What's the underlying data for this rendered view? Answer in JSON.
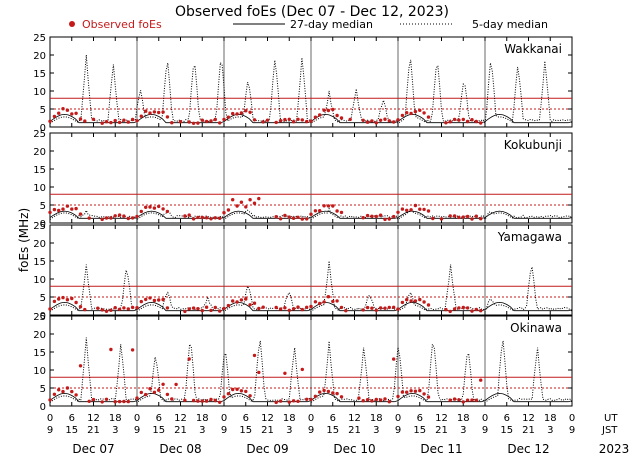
{
  "chart_data": {
    "type": "scatter",
    "title": "Observed foEs (Dec 07 - Dec 12, 2023)",
    "ylabel": "foEs (MHz)",
    "ylim": [
      0,
      25
    ],
    "yticks": [
      0,
      5,
      10,
      15,
      20,
      25
    ],
    "legend": {
      "observed": "Observed foEs",
      "median27": "27-day median",
      "median5": "5-day median"
    },
    "colors": {
      "observed": "#c41a1a",
      "median27": "#000000",
      "median5": "#000000",
      "reference_lines": "#c41a1a"
    },
    "x_range_hours_ut": [
      0,
      144
    ],
    "ut_tick_labels": [
      "0",
      "6",
      "12",
      "18",
      "0",
      "6",
      "12",
      "18",
      "0",
      "6",
      "12",
      "18",
      "0",
      "6",
      "12",
      "18",
      "0",
      "6",
      "12",
      "18",
      "0",
      "6",
      "12",
      "18",
      "0"
    ],
    "jst_tick_labels": [
      "9",
      "15",
      "21",
      "3",
      "9",
      "15",
      "21",
      "3",
      "9",
      "15",
      "21",
      "3",
      "9",
      "15",
      "21",
      "3",
      "9",
      "15",
      "21",
      "3",
      "9",
      "15",
      "21",
      "3",
      "9"
    ],
    "ut_label": "UT",
    "jst_label": "JST",
    "days": [
      "Dec 07",
      "Dec 08",
      "Dec 09",
      "Dec 10",
      "Dec 11",
      "Dec 12"
    ],
    "year": "2023",
    "stations": [
      {
        "name": "Wakkanai",
        "ref_lines": [
          5,
          8
        ],
        "median_peaks": [
          20,
          18,
          11,
          20,
          20,
          21,
          14,
          20,
          20,
          10,
          11,
          8,
          21,
          20,
          14,
          20,
          18,
          19
        ]
      },
      {
        "name": "Kokubunji",
        "ref_lines": [
          5,
          8
        ],
        "median_peaks": [
          3.5,
          3.5,
          4,
          4,
          4,
          3.5
        ]
      },
      {
        "name": "Yamagawa",
        "ref_lines": [
          5,
          8
        ],
        "median_peaks": [
          14,
          14,
          7,
          5,
          9,
          7,
          15,
          6,
          7,
          14,
          5,
          15
        ]
      },
      {
        "name": "Okinawa",
        "ref_lines": [
          5,
          8
        ],
        "median_peaks": [
          19,
          18,
          15,
          20,
          17,
          20,
          17,
          18,
          17,
          18,
          20,
          17,
          20,
          17
        ]
      }
    ]
  }
}
